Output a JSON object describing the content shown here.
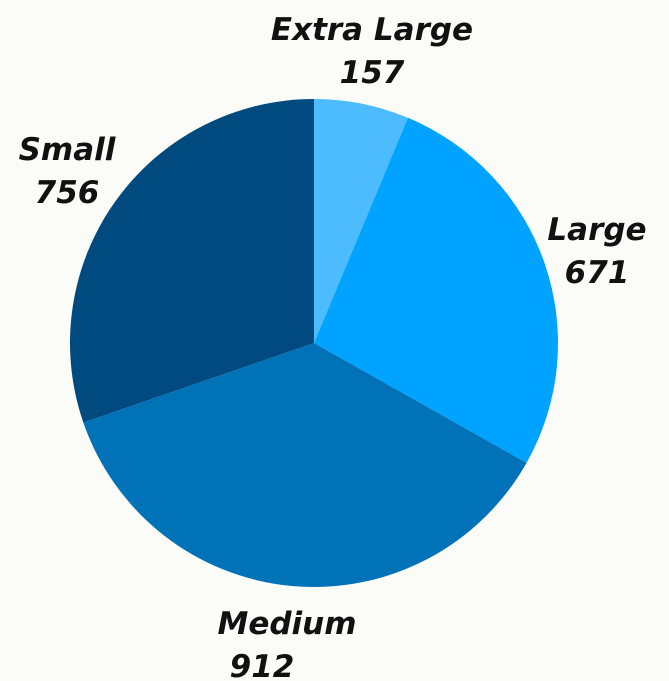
{
  "chart_data": {
    "type": "pie",
    "start_angle_deg": 0,
    "direction": "clockwise",
    "slices": [
      {
        "label": "Extra Large",
        "value": 157,
        "display": "157",
        "color": "#4dbcff"
      },
      {
        "label": "Large",
        "value": 671,
        "display": "671",
        "color": "#00a3ff"
      },
      {
        "label": "Medium",
        "value": 912,
        "display": "912",
        "color": "#0072b8"
      },
      {
        "label": "Small",
        "value": 756,
        "display": "756",
        "color": "#004a80"
      }
    ]
  }
}
